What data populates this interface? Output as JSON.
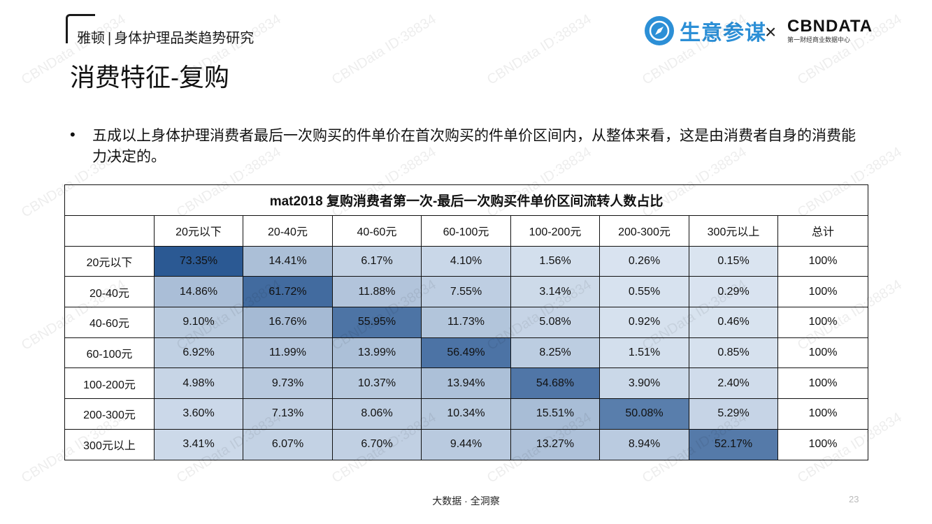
{
  "header": {
    "brand_left": "雅顿",
    "brand_sep": "|",
    "brand_right": "身体护理品类趋势研究",
    "title": "消费特征-复购",
    "logo_a_text": "生意参谋",
    "logo_x": "×",
    "logo_b_name": "CBNDATA",
    "logo_b_sub": "第一财经商业数据中心"
  },
  "bullet": {
    "marker": "•",
    "text": "五成以上身体护理消费者最后一次购买的件单价在首次购买的件单价区间内，从整体来看，这是由消费者自身的消费能力决定的。"
  },
  "chart_data": {
    "type": "heatmap",
    "title": "mat2018 复购消费者第一次-最后一次购买件单价区间流转人数占比",
    "columns": [
      "20元以下",
      "20-40元",
      "40-60元",
      "60-100元",
      "100-200元",
      "200-300元",
      "300元以上"
    ],
    "total_label": "总计",
    "rows": [
      {
        "label": "20元以下",
        "values": [
          73.35,
          14.41,
          6.17,
          4.1,
          1.56,
          0.26,
          0.15
        ],
        "total": "100%"
      },
      {
        "label": "20-40元",
        "values": [
          14.86,
          61.72,
          11.88,
          7.55,
          3.14,
          0.55,
          0.29
        ],
        "total": "100%"
      },
      {
        "label": "40-60元",
        "values": [
          9.1,
          16.76,
          55.95,
          11.73,
          5.08,
          0.92,
          0.46
        ],
        "total": "100%"
      },
      {
        "label": "60-100元",
        "values": [
          6.92,
          11.99,
          13.99,
          56.49,
          8.25,
          1.51,
          0.85
        ],
        "total": "100%"
      },
      {
        "label": "100-200元",
        "values": [
          4.98,
          9.73,
          10.37,
          13.94,
          54.68,
          3.9,
          2.4
        ],
        "total": "100%"
      },
      {
        "label": "200-300元",
        "values": [
          3.6,
          7.13,
          8.06,
          10.34,
          15.51,
          50.08,
          5.29
        ],
        "total": "100%"
      },
      {
        "label": "300元以上",
        "values": [
          3.41,
          6.07,
          6.7,
          9.44,
          13.27,
          8.94,
          52.17
        ],
        "total": "100%"
      }
    ],
    "color_low": "#dbe5f1",
    "color_high": "#2b5993"
  },
  "watermark": "CBNData ID:38834",
  "footer": "大数据 · 全洞察",
  "page_number": "23"
}
